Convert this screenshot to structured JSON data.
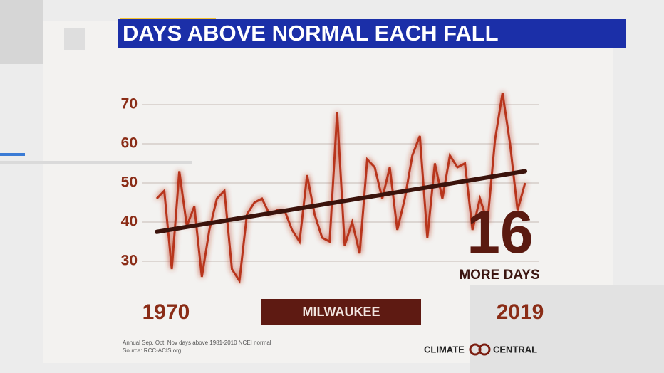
{
  "chart_data": {
    "type": "line",
    "title": "DAYS ABOVE NORMAL EACH FALL",
    "location": "MILWAUKEE",
    "callout_number": "16",
    "callout_text": "MORE DAYS",
    "footnote": [
      "Annual Sep, Oct, Nov days above 1981-2010 NCEI normal",
      "Source: RCC-ACIS.org"
    ],
    "logo": [
      "CLIMATE",
      "CENTRAL"
    ],
    "x": [
      1970,
      1971,
      1972,
      1973,
      1974,
      1975,
      1976,
      1977,
      1978,
      1979,
      1980,
      1981,
      1982,
      1983,
      1984,
      1985,
      1986,
      1987,
      1988,
      1989,
      1990,
      1991,
      1992,
      1993,
      1994,
      1995,
      1996,
      1997,
      1998,
      1999,
      2000,
      2001,
      2002,
      2003,
      2004,
      2005,
      2006,
      2007,
      2008,
      2009,
      2010,
      2011,
      2012,
      2013,
      2014,
      2015,
      2016,
      2017,
      2018,
      2019
    ],
    "series": [
      {
        "color": "#b8361f",
        "values": [
          46,
          48,
          28,
          53,
          39,
          44,
          26,
          38,
          46,
          48,
          28,
          25,
          42,
          45,
          46,
          42,
          43,
          43,
          38,
          35,
          52,
          42,
          36,
          35,
          68,
          34,
          40,
          32,
          56,
          54,
          46,
          54,
          38,
          46,
          57,
          62,
          36,
          55,
          46,
          57,
          54,
          55,
          38,
          46,
          40,
          61,
          73,
          60,
          43,
          50
        ]
      }
    ],
    "trend": {
      "color": "#3b130c",
      "x": [
        1970,
        2019
      ],
      "values": [
        37.5,
        53
      ]
    },
    "xlim": [
      1970,
      2019
    ],
    "xticks": [
      1970,
      2019
    ],
    "ylim": [
      20,
      75
    ],
    "yticks": [
      30,
      40,
      50,
      60,
      70
    ],
    "grid": true
  }
}
